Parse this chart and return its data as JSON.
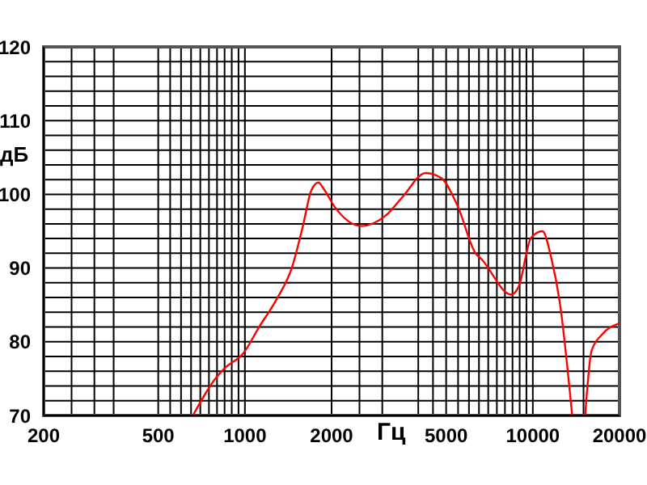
{
  "chart_data": {
    "type": "line",
    "xlabel": "Гц",
    "ylabel": "дБ",
    "log": "x",
    "x": [
      660,
      800,
      850,
      990,
      1120,
      1290,
      1460,
      1590,
      1700,
      1800,
      1880,
      2050,
      2540,
      3100,
      3520,
      4250,
      4810,
      5470,
      6350,
      6600,
      8400,
      8930,
      9860,
      10800,
      11600,
      12400,
      13700,
      14500,
      15200,
      16000,
      17400,
      20000
    ],
    "series": [
      {
        "color": "#ff0000",
        "values": [
          70,
          75.3,
          76.4,
          78.5,
          82,
          85.8,
          90.2,
          95.7,
          100.5,
          101.6,
          100.7,
          98.3,
          95.7,
          97.2,
          99.6,
          102.9,
          102.2,
          98.5,
          91.9,
          91.3,
          86.4,
          87.5,
          94.1,
          95,
          91.3,
          85.4,
          70,
          null,
          70,
          78.8,
          81,
          82.5
        ]
      }
    ],
    "xlim": [
      200,
      20000
    ],
    "xticks": [
      200,
      {
        "value": 250,
        "label": null
      },
      {
        "value": 300,
        "label": null
      },
      {
        "value": 350,
        "label": null
      },
      500,
      {
        "value": 550,
        "label": null
      },
      {
        "value": 600,
        "label": null
      },
      {
        "value": 650,
        "label": null
      },
      {
        "value": 700,
        "label": null
      },
      {
        "value": 750,
        "label": null
      },
      {
        "value": 800,
        "label": null
      },
      {
        "value": 850,
        "label": null
      },
      {
        "value": 900,
        "label": null
      },
      {
        "value": 950,
        "label": null
      },
      1000,
      2000,
      {
        "value": 2500,
        "label": null
      },
      {
        "value": 3000,
        "label": null
      },
      {
        "value": 4000,
        "label": null
      },
      {
        "value": 4500,
        "label": null
      },
      5000,
      {
        "value": 5500,
        "label": null
      },
      {
        "value": 6000,
        "label": null
      },
      {
        "value": 6500,
        "label": null
      },
      {
        "value": 7000,
        "label": null
      },
      {
        "value": 7500,
        "label": null
      },
      {
        "value": 8000,
        "label": null
      },
      {
        "value": 8500,
        "label": null
      },
      {
        "value": 9000,
        "label": null
      },
      {
        "value": 9500,
        "label": null
      },
      10000,
      {
        "value": 15000,
        "label": null
      },
      20000
    ],
    "ylim": [
      70,
      120
    ],
    "yticks": [
      70,
      {
        "value": 72,
        "label": null
      },
      {
        "value": 74,
        "label": null
      },
      {
        "value": 76,
        "label": null
      },
      {
        "value": 78,
        "label": null
      },
      80,
      {
        "value": 82,
        "label": null
      },
      {
        "value": 84,
        "label": null
      },
      {
        "value": 86,
        "label": null
      },
      {
        "value": 88,
        "label": null
      },
      90,
      {
        "value": 92,
        "label": null
      },
      {
        "value": 94,
        "label": null
      },
      {
        "value": 96,
        "label": null
      },
      {
        "value": 98,
        "label": null
      },
      100,
      {
        "value": 102,
        "label": null
      },
      {
        "value": 104,
        "label": null
      },
      {
        "value": 106,
        "label": null
      },
      {
        "value": 108,
        "label": null
      },
      110,
      {
        "value": 112,
        "label": null
      },
      {
        "value": 114,
        "label": null
      },
      {
        "value": 116,
        "label": null
      },
      {
        "value": 118,
        "label": null
      },
      120
    ],
    "grid": true,
    "marker": "none",
    "line_style": "solid"
  }
}
